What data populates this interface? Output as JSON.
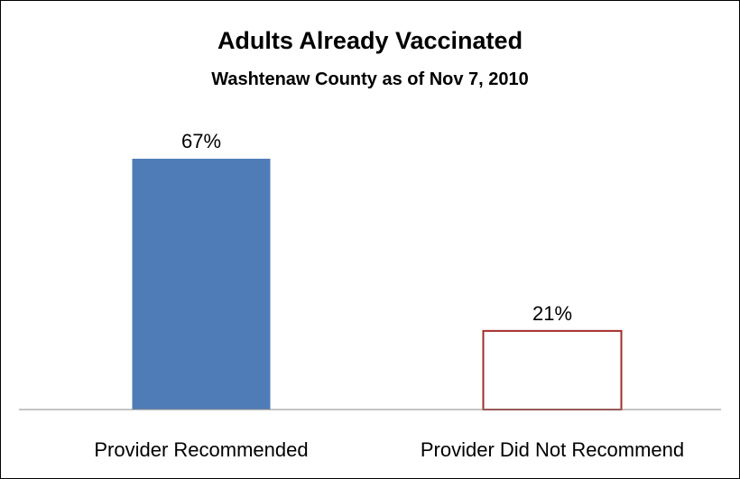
{
  "chart_data": {
    "type": "bar",
    "title": "Adults Already Vaccinated",
    "subtitle": "Washtenaw County as of Nov 7, 2010",
    "categories": [
      "Provider Recommended",
      "Provider Did Not Recommend"
    ],
    "values": [
      67,
      21
    ],
    "data_labels": [
      "67%",
      "21%"
    ],
    "ylim": [
      0,
      100
    ],
    "grid": false,
    "legend": "none",
    "colors": {
      "recommended_fill": "#4f7cb7",
      "not_recommended_fill": "#ffffff",
      "not_recommended_stroke": "#a52a2a",
      "axis": "#888888"
    }
  }
}
